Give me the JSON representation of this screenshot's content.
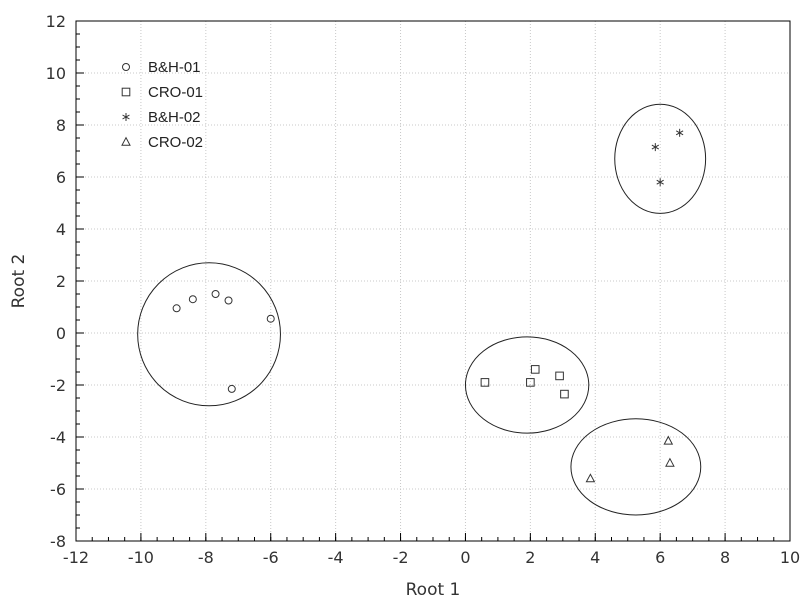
{
  "chart_data": {
    "type": "scatter",
    "xlabel": "Root 1",
    "ylabel": "Root 2",
    "xlim": [
      -12,
      10
    ],
    "ylim": [
      -8,
      12
    ],
    "xticks": [
      -12,
      -10,
      -8,
      -6,
      -4,
      -2,
      0,
      2,
      4,
      6,
      8,
      10
    ],
    "yticks": [
      -8,
      -6,
      -4,
      -2,
      0,
      2,
      4,
      6,
      8,
      10,
      12
    ],
    "x_minor_step": 0.5,
    "y_minor_step": 0.5,
    "grid": true,
    "legend_position": "top-left",
    "series": [
      {
        "name": "B&H-01",
        "marker": "circle",
        "points": [
          [
            -8.9,
            0.95
          ],
          [
            -8.4,
            1.3
          ],
          [
            -7.7,
            1.5
          ],
          [
            -7.3,
            1.25
          ],
          [
            -6.0,
            0.55
          ],
          [
            -7.2,
            -2.15
          ]
        ],
        "ellipse": {
          "cx": -7.9,
          "cy": -0.05,
          "rx": 2.2,
          "ry": 2.75
        }
      },
      {
        "name": "CRO-01",
        "marker": "square",
        "points": [
          [
            0.6,
            -1.9
          ],
          [
            2.0,
            -1.9
          ],
          [
            2.15,
            -1.4
          ],
          [
            2.9,
            -1.65
          ],
          [
            3.05,
            -2.35
          ]
        ],
        "ellipse": {
          "cx": 1.9,
          "cy": -2.0,
          "rx": 1.9,
          "ry": 1.85
        }
      },
      {
        "name": "B&H-02",
        "marker": "asterisk",
        "points": [
          [
            5.85,
            7.15
          ],
          [
            6.6,
            7.7
          ],
          [
            6.0,
            5.8
          ]
        ],
        "ellipse": {
          "cx": 6.0,
          "cy": 6.7,
          "rx": 1.4,
          "ry": 2.1
        }
      },
      {
        "name": "CRO-02",
        "marker": "triangle",
        "points": [
          [
            3.85,
            -5.6
          ],
          [
            6.25,
            -4.15
          ],
          [
            6.3,
            -5.0
          ]
        ],
        "ellipse": {
          "cx": 5.25,
          "cy": -5.15,
          "rx": 2.0,
          "ry": 1.85
        }
      }
    ]
  }
}
